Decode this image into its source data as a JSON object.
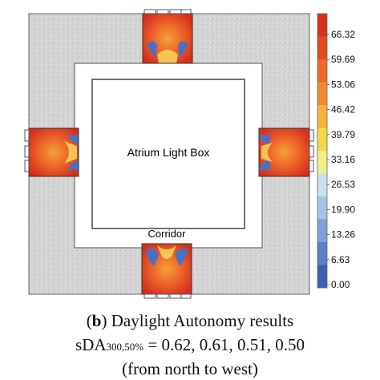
{
  "figure": {
    "center_label": "Atrium Light Box",
    "corridor_label": "Corridor",
    "colorbar": {
      "ticks": [
        "66.32",
        "59.69",
        "53.06",
        "46.42",
        "39.79",
        "33.16",
        "26.53",
        "19.90",
        "13.26",
        "6.63",
        "0.00"
      ],
      "colors": [
        "#d7301f",
        "#e34a1f",
        "#f0682a",
        "#f48a2f",
        "#f7b23a",
        "#f5d84a",
        "#eef08a",
        "#c7e2ec",
        "#a4c3e6",
        "#7e9fd7",
        "#5d7fc6",
        "#3f5fb3"
      ]
    }
  },
  "caption": {
    "line1_open": "(",
    "line1_letter": "b",
    "line1_rest": ") Daylight Autonomy results",
    "line2_prefix": "sDA",
    "line2_sub": "300,50%",
    "line2_rest": " = 0.62, 0.61, 0.51, 0.50",
    "line3": "(from north to west)"
  }
}
